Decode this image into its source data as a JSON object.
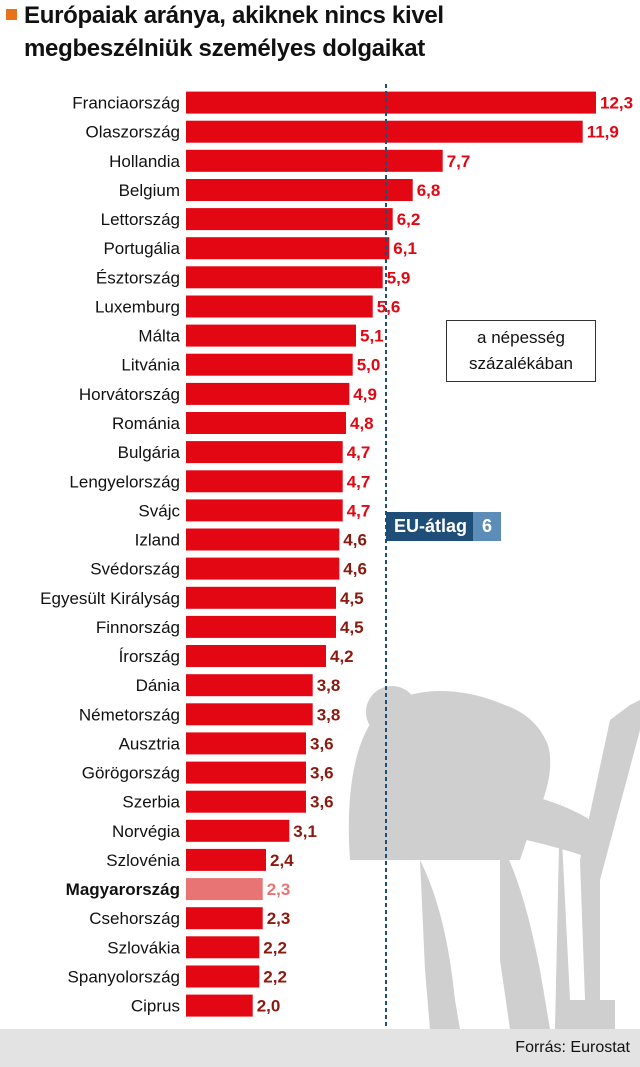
{
  "title": {
    "line1": "Európaiak aránya, akiknek nincs kivel",
    "line2": "megbeszélniük személyes dolgaikat"
  },
  "note": {
    "line1": "a népesség",
    "line2": "százalékában"
  },
  "average": {
    "label": "EU-átlag",
    "value_text": "6"
  },
  "source": "Forrás: Eurostat",
  "colors": {
    "bar": "#e30613",
    "highlight_bar": "#e87474",
    "label_red": "#e30613",
    "label_dark": "#8b1a10",
    "average_line": "#1f4e79",
    "title_marker": "#e8731a"
  },
  "chart_data": {
    "type": "bar",
    "orientation": "horizontal",
    "categories": [
      "Franciaország",
      "Olaszország",
      "Hollandia",
      "Belgium",
      "Lettország",
      "Portugália",
      "Észtország",
      "Luxemburg",
      "Málta",
      "Litvánia",
      "Horvátország",
      "Románia",
      "Bulgária",
      "Lengyelország",
      "Svájc",
      "Izland",
      "Svédország",
      "Egyesült Királyság",
      "Finnország",
      "Írország",
      "Dánia",
      "Németország",
      "Ausztria",
      "Görögország",
      "Szerbia",
      "Norvégia",
      "Szlovénia",
      "Magyarország",
      "Csehország",
      "Szlovákia",
      "Spanyolország",
      "Ciprus"
    ],
    "values": [
      12.3,
      11.9,
      7.7,
      6.8,
      6.2,
      6.1,
      5.9,
      5.6,
      5.1,
      5.0,
      4.9,
      4.8,
      4.7,
      4.7,
      4.7,
      4.6,
      4.6,
      4.5,
      4.5,
      4.2,
      3.8,
      3.8,
      3.6,
      3.6,
      3.6,
      3.1,
      2.4,
      2.3,
      2.3,
      2.2,
      2.2,
      2.0
    ],
    "value_labels": [
      "12,3",
      "11,9",
      "7,7",
      "6,8",
      "6,2",
      "6,1",
      "5,9",
      "5,6",
      "5,1",
      "5,0",
      "4,9",
      "4,8",
      "4,7",
      "4,7",
      "4,7",
      "4,6",
      "4,6",
      "4,5",
      "4,5",
      "4,2",
      "3,8",
      "3,8",
      "3,6",
      "3,6",
      "3,6",
      "3,1",
      "2,4",
      "2,3",
      "2,3",
      "2,2",
      "2,2",
      "2,0"
    ],
    "highlight": "Magyarország",
    "reference_line": {
      "label": "EU-átlag",
      "value": 6
    },
    "xlim": [
      0,
      12.3
    ],
    "grid": false,
    "unit": "a népesség százalékában"
  }
}
